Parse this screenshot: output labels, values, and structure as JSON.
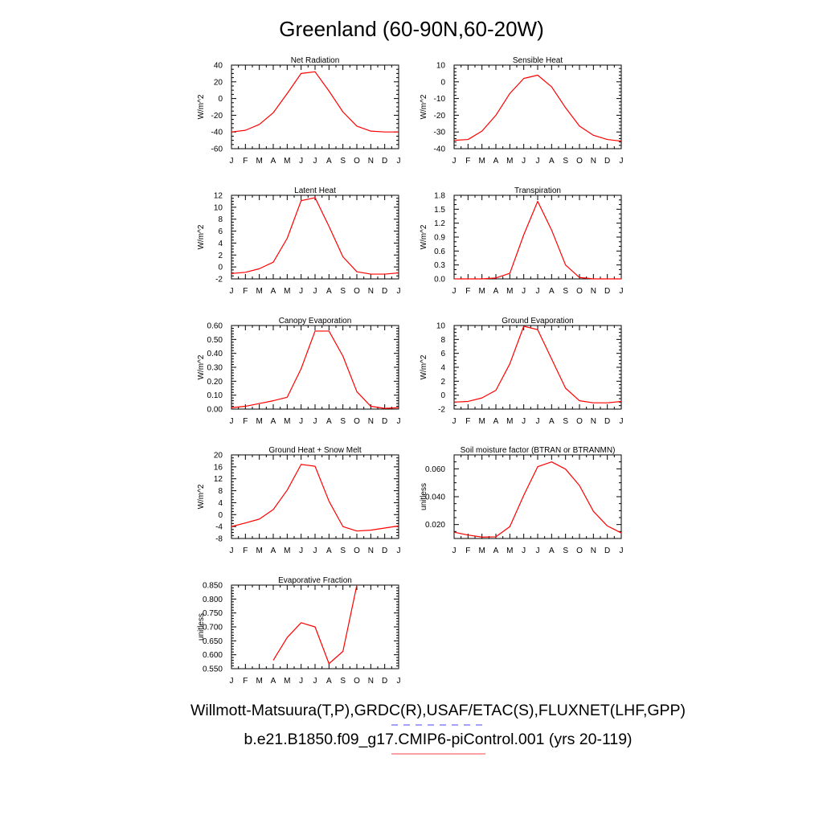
{
  "figure": {
    "title": "Greenland (60-90N,60-20W)",
    "legend_line1": "Willmott-Matsuura(T,P),GRDC(R),USAF/ETAC(S),FLUXNET(LHF,GPP)",
    "legend_line2": "b.e21.B1850.f09_g17.CMIP6-piControl.001 (yrs 20-119)",
    "legend_line1_color": "#6e6ef0",
    "legend_line2_color": "#ff6666",
    "series_color": "#ff0000"
  },
  "chart_data": [
    {
      "type": "line",
      "title": "Net Radiation",
      "ylabel": "W/m^2",
      "x": [
        "J",
        "F",
        "M",
        "A",
        "M",
        "J",
        "J",
        "A",
        "S",
        "O",
        "N",
        "D",
        "J"
      ],
      "xlabels": [
        "J",
        "F",
        "M",
        "A",
        "M",
        "J",
        "J",
        "A",
        "S",
        "O",
        "N",
        "D",
        "J"
      ],
      "ylim": [
        -60,
        40
      ],
      "yticks": [
        40,
        20,
        0,
        -20,
        -40,
        -60
      ],
      "ytick_labels": [
        "40",
        "20",
        "0",
        "-20",
        "-40",
        "-60"
      ],
      "minor_step": 5,
      "values": [
        -40,
        -38,
        -31,
        -17,
        6,
        30,
        32,
        9,
        -16,
        -33,
        -39,
        -40,
        -40
      ]
    },
    {
      "type": "line",
      "title": "Sensible Heat",
      "ylabel": "W/m^2",
      "x": [
        "J",
        "F",
        "M",
        "A",
        "M",
        "J",
        "J",
        "A",
        "S",
        "O",
        "N",
        "D",
        "J"
      ],
      "xlabels": [
        "J",
        "F",
        "M",
        "A",
        "M",
        "J",
        "J",
        "A",
        "S",
        "O",
        "N",
        "D",
        "J"
      ],
      "ylim": [
        -40,
        10
      ],
      "yticks": [
        10,
        0,
        -10,
        -20,
        -30,
        -40
      ],
      "ytick_labels": [
        "10",
        "0",
        "-10",
        "-20",
        "-30",
        "-40"
      ],
      "minor_step": 2,
      "values": [
        -35,
        -34.5,
        -29.5,
        -20,
        -7,
        2,
        4,
        -3,
        -15.5,
        -26.5,
        -32,
        -34.5,
        -35.5
      ]
    },
    {
      "type": "line",
      "title": "Latent Heat",
      "ylabel": "W/m^2",
      "x": [
        "J",
        "F",
        "M",
        "A",
        "M",
        "J",
        "J",
        "A",
        "S",
        "O",
        "N",
        "D",
        "J"
      ],
      "xlabels": [
        "J",
        "F",
        "M",
        "A",
        "M",
        "J",
        "J",
        "A",
        "S",
        "O",
        "N",
        "D",
        "J"
      ],
      "ylim": [
        -2,
        12
      ],
      "yticks": [
        12,
        10,
        8,
        6,
        4,
        2,
        0,
        -2
      ],
      "ytick_labels": [
        "12",
        "10",
        "8",
        "6",
        "4",
        "2",
        "0",
        "-2"
      ],
      "minor_step": 0.5,
      "values": [
        -1.1,
        -0.9,
        -0.3,
        0.8,
        4.8,
        11.1,
        11.6,
        6.8,
        1.7,
        -0.8,
        -1.2,
        -1.2,
        -1
      ]
    },
    {
      "type": "line",
      "title": "Transpiration",
      "ylabel": "W/m^2",
      "x": [
        "J",
        "F",
        "M",
        "A",
        "M",
        "J",
        "J",
        "A",
        "S",
        "O",
        "N",
        "D",
        "J"
      ],
      "xlabels": [
        "J",
        "F",
        "M",
        "A",
        "M",
        "J",
        "J",
        "A",
        "S",
        "O",
        "N",
        "D",
        "J"
      ],
      "ylim": [
        0,
        1.8
      ],
      "yticks": [
        1.8,
        1.5,
        1.2,
        0.9,
        0.6,
        0.3,
        0.0
      ],
      "ytick_labels": [
        "1.8",
        "1.5",
        "1.2",
        "0.9",
        "0.6",
        "0.3",
        "0.0"
      ],
      "minor_step": 0.1,
      "values": [
        0,
        0,
        0,
        0.02,
        0.12,
        0.95,
        1.67,
        1.05,
        0.3,
        0.03,
        0,
        0,
        0
      ]
    },
    {
      "type": "line",
      "title": "Canopy Evaporation",
      "ylabel": "W/m^2",
      "x": [
        "J",
        "F",
        "M",
        "A",
        "M",
        "J",
        "J",
        "A",
        "S",
        "O",
        "N",
        "D",
        "J"
      ],
      "xlabels": [
        "J",
        "F",
        "M",
        "A",
        "M",
        "J",
        "J",
        "A",
        "S",
        "O",
        "N",
        "D",
        "J"
      ],
      "ylim": [
        0,
        0.6
      ],
      "yticks": [
        0.6,
        0.5,
        0.4,
        0.3,
        0.2,
        0.1,
        0.0
      ],
      "ytick_labels": [
        "0.60",
        "0.50",
        "0.40",
        "0.30",
        "0.20",
        "0.10",
        "0.00"
      ],
      "minor_step": 0.02,
      "values": [
        0.01,
        0.02,
        0.04,
        0.06,
        0.085,
        0.29,
        0.56,
        0.56,
        0.38,
        0.125,
        0.02,
        0.005,
        0.01
      ]
    },
    {
      "type": "line",
      "title": "Ground Evaporation",
      "ylabel": "W/m^2",
      "x": [
        "J",
        "F",
        "M",
        "A",
        "M",
        "J",
        "J",
        "A",
        "S",
        "O",
        "N",
        "D",
        "J"
      ],
      "xlabels": [
        "J",
        "F",
        "M",
        "A",
        "M",
        "J",
        "J",
        "A",
        "S",
        "O",
        "N",
        "D",
        "J"
      ],
      "ylim": [
        -2,
        10
      ],
      "yticks": [
        10,
        8,
        6,
        4,
        2,
        0,
        -2
      ],
      "ytick_labels": [
        "10",
        "8",
        "6",
        "4",
        "2",
        "0",
        "-2"
      ],
      "minor_step": 0.5,
      "values": [
        -1,
        -0.9,
        -0.4,
        0.7,
        4.5,
        9.9,
        9.4,
        5.2,
        1,
        -0.8,
        -1.1,
        -1.1,
        -0.9
      ]
    },
    {
      "type": "line",
      "title": "Ground Heat + Snow Melt",
      "ylabel": "W/m^2",
      "x": [
        "J",
        "F",
        "M",
        "A",
        "M",
        "J",
        "J",
        "A",
        "S",
        "O",
        "N",
        "D",
        "J"
      ],
      "xlabels": [
        "J",
        "F",
        "M",
        "A",
        "M",
        "J",
        "J",
        "A",
        "S",
        "O",
        "N",
        "D",
        "J"
      ],
      "ylim": [
        -8,
        20
      ],
      "yticks": [
        20,
        16,
        12,
        8,
        4,
        0,
        -4,
        -8
      ],
      "ytick_labels": [
        "20",
        "16",
        "12",
        "8",
        "4",
        "0",
        "-4",
        "-8"
      ],
      "minor_step": 1,
      "values": [
        -4,
        -2.8,
        -1.5,
        1.7,
        8.2,
        16.8,
        16.2,
        4.5,
        -4,
        -5.5,
        -5.2,
        -4.5,
        -3.8
      ]
    },
    {
      "type": "line",
      "title": "Soil moisture factor (BTRAN or BTRANMN)",
      "ylabel": "unitless",
      "x": [
        "J",
        "F",
        "M",
        "A",
        "M",
        "J",
        "J",
        "A",
        "S",
        "O",
        "N",
        "D",
        "J"
      ],
      "xlabels": [
        "J",
        "F",
        "M",
        "A",
        "M",
        "J",
        "J",
        "A",
        "S",
        "O",
        "N",
        "D",
        "J"
      ],
      "ylim": [
        0.01,
        0.07
      ],
      "yticks": [
        0.06,
        0.04,
        0.02
      ],
      "ytick_labels": [
        "0.060",
        "0.040",
        "0.020"
      ],
      "minor_step": 0.005,
      "values": [
        0.0145,
        0.0125,
        0.011,
        0.0112,
        0.0185,
        0.041,
        0.0615,
        0.065,
        0.0598,
        0.048,
        0.0295,
        0.019,
        0.014
      ]
    },
    {
      "type": "line",
      "title": "Evaporative Fraction",
      "ylabel": "unitless",
      "x": [
        "J",
        "F",
        "M",
        "A",
        "M",
        "J",
        "J",
        "A",
        "S",
        "O",
        "N",
        "D",
        "J"
      ],
      "xlabels": [
        "J",
        "F",
        "M",
        "A",
        "M",
        "J",
        "J",
        "A",
        "S",
        "O",
        "N",
        "D",
        "J"
      ],
      "ylim": [
        0.55,
        0.85
      ],
      "yticks": [
        0.85,
        0.8,
        0.75,
        0.7,
        0.65,
        0.6,
        0.55
      ],
      "ytick_labels": [
        "0.850",
        "0.800",
        "0.750",
        "0.700",
        "0.650",
        "0.600",
        "0.550"
      ],
      "minor_step": 0.01,
      "values": [
        null,
        null,
        null,
        0.58,
        0.662,
        0.715,
        0.7,
        0.568,
        0.612,
        0.85,
        null,
        null,
        null
      ]
    }
  ]
}
